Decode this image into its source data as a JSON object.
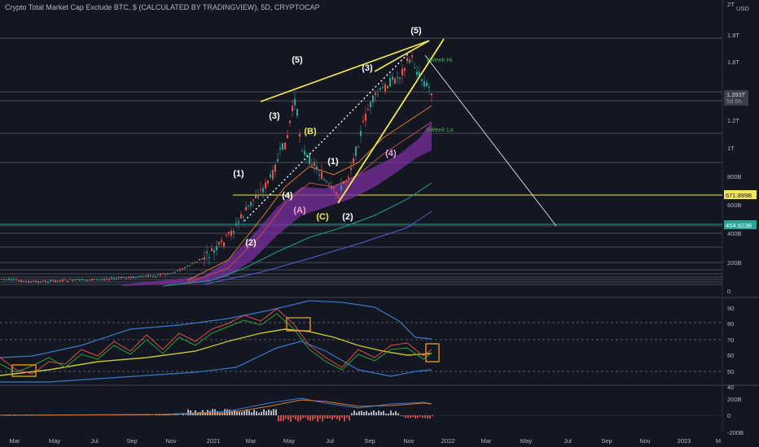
{
  "header": {
    "title": "Crypto Total Market Cap Exclude BTC, $ (CALCULATED BY TRADINGVIEW), 5D, CRYPTOCAP",
    "scale_top": "2T",
    "currency": "USD"
  },
  "chart_data": [
    {
      "type": "line",
      "panel": "price",
      "y_axis": {
        "ticks": [
          "1.8T",
          "1.6T",
          "1.4T",
          "1.2T",
          "1T",
          "800B",
          "600B",
          "400B",
          "200B",
          "0"
        ]
      },
      "x_axis": {
        "ticks": [
          "Mar",
          "May",
          "Jul",
          "Sep",
          "Nov",
          "2021",
          "Mar",
          "May",
          "Jul",
          "Sep",
          "Nov",
          "2022",
          "Mar",
          "May",
          "Jul",
          "Sep",
          "Nov",
          "2023",
          "M"
        ]
      },
      "price_tags": [
        {
          "label": "1.393T",
          "sub": "5d 6h",
          "color": "#3a3e4a",
          "text": "#d1d4dc"
        },
        {
          "label": "671.899B",
          "color": "#f5e94d",
          "text": "#131722"
        },
        {
          "label": "454.923B",
          "color": "#26a69a",
          "text": "#ffffff"
        }
      ],
      "annotations": {
        "week_hi": "1Week Hi",
        "week_lo": "1Week Lo"
      },
      "wave_labels": [
        {
          "text": "(5)",
          "color": "#ffffff"
        },
        {
          "text": "(5)",
          "color": "#ffffff"
        },
        {
          "text": "(3)",
          "color": "#ffffff"
        },
        {
          "text": "(3)",
          "color": "#ffffff"
        },
        {
          "text": "(B)",
          "color": "#f5e94d"
        },
        {
          "text": "(1)",
          "color": "#ffffff"
        },
        {
          "text": "(1)",
          "color": "#ffffff"
        },
        {
          "text": "(4)",
          "color": "#ffffff"
        },
        {
          "text": "(4)",
          "color": "#e1a8f0"
        },
        {
          "text": "(A)",
          "color": "#f0a8c8"
        },
        {
          "text": "(C)",
          "color": "#f5e94d"
        },
        {
          "text": "(2)",
          "color": "#ffffff"
        },
        {
          "text": "(2)",
          "color": "#ffffff"
        }
      ]
    },
    {
      "type": "line",
      "panel": "oscillator",
      "y_axis": {
        "ticks": [
          "90",
          "80",
          "70",
          "60",
          "50",
          "40"
        ]
      },
      "levels": [
        80,
        70,
        50
      ]
    },
    {
      "type": "bar",
      "panel": "macd",
      "y_axis": {
        "ticks": [
          "200B",
          "0",
          "-200B"
        ]
      }
    }
  ],
  "colors": {
    "background": "#131722",
    "grid": "#2a2e39",
    "trendline": "#f5e94d",
    "cloud": "#8e3fb0",
    "bull": "#26a69a",
    "bear": "#ef5350",
    "box": "#f59c1a"
  }
}
